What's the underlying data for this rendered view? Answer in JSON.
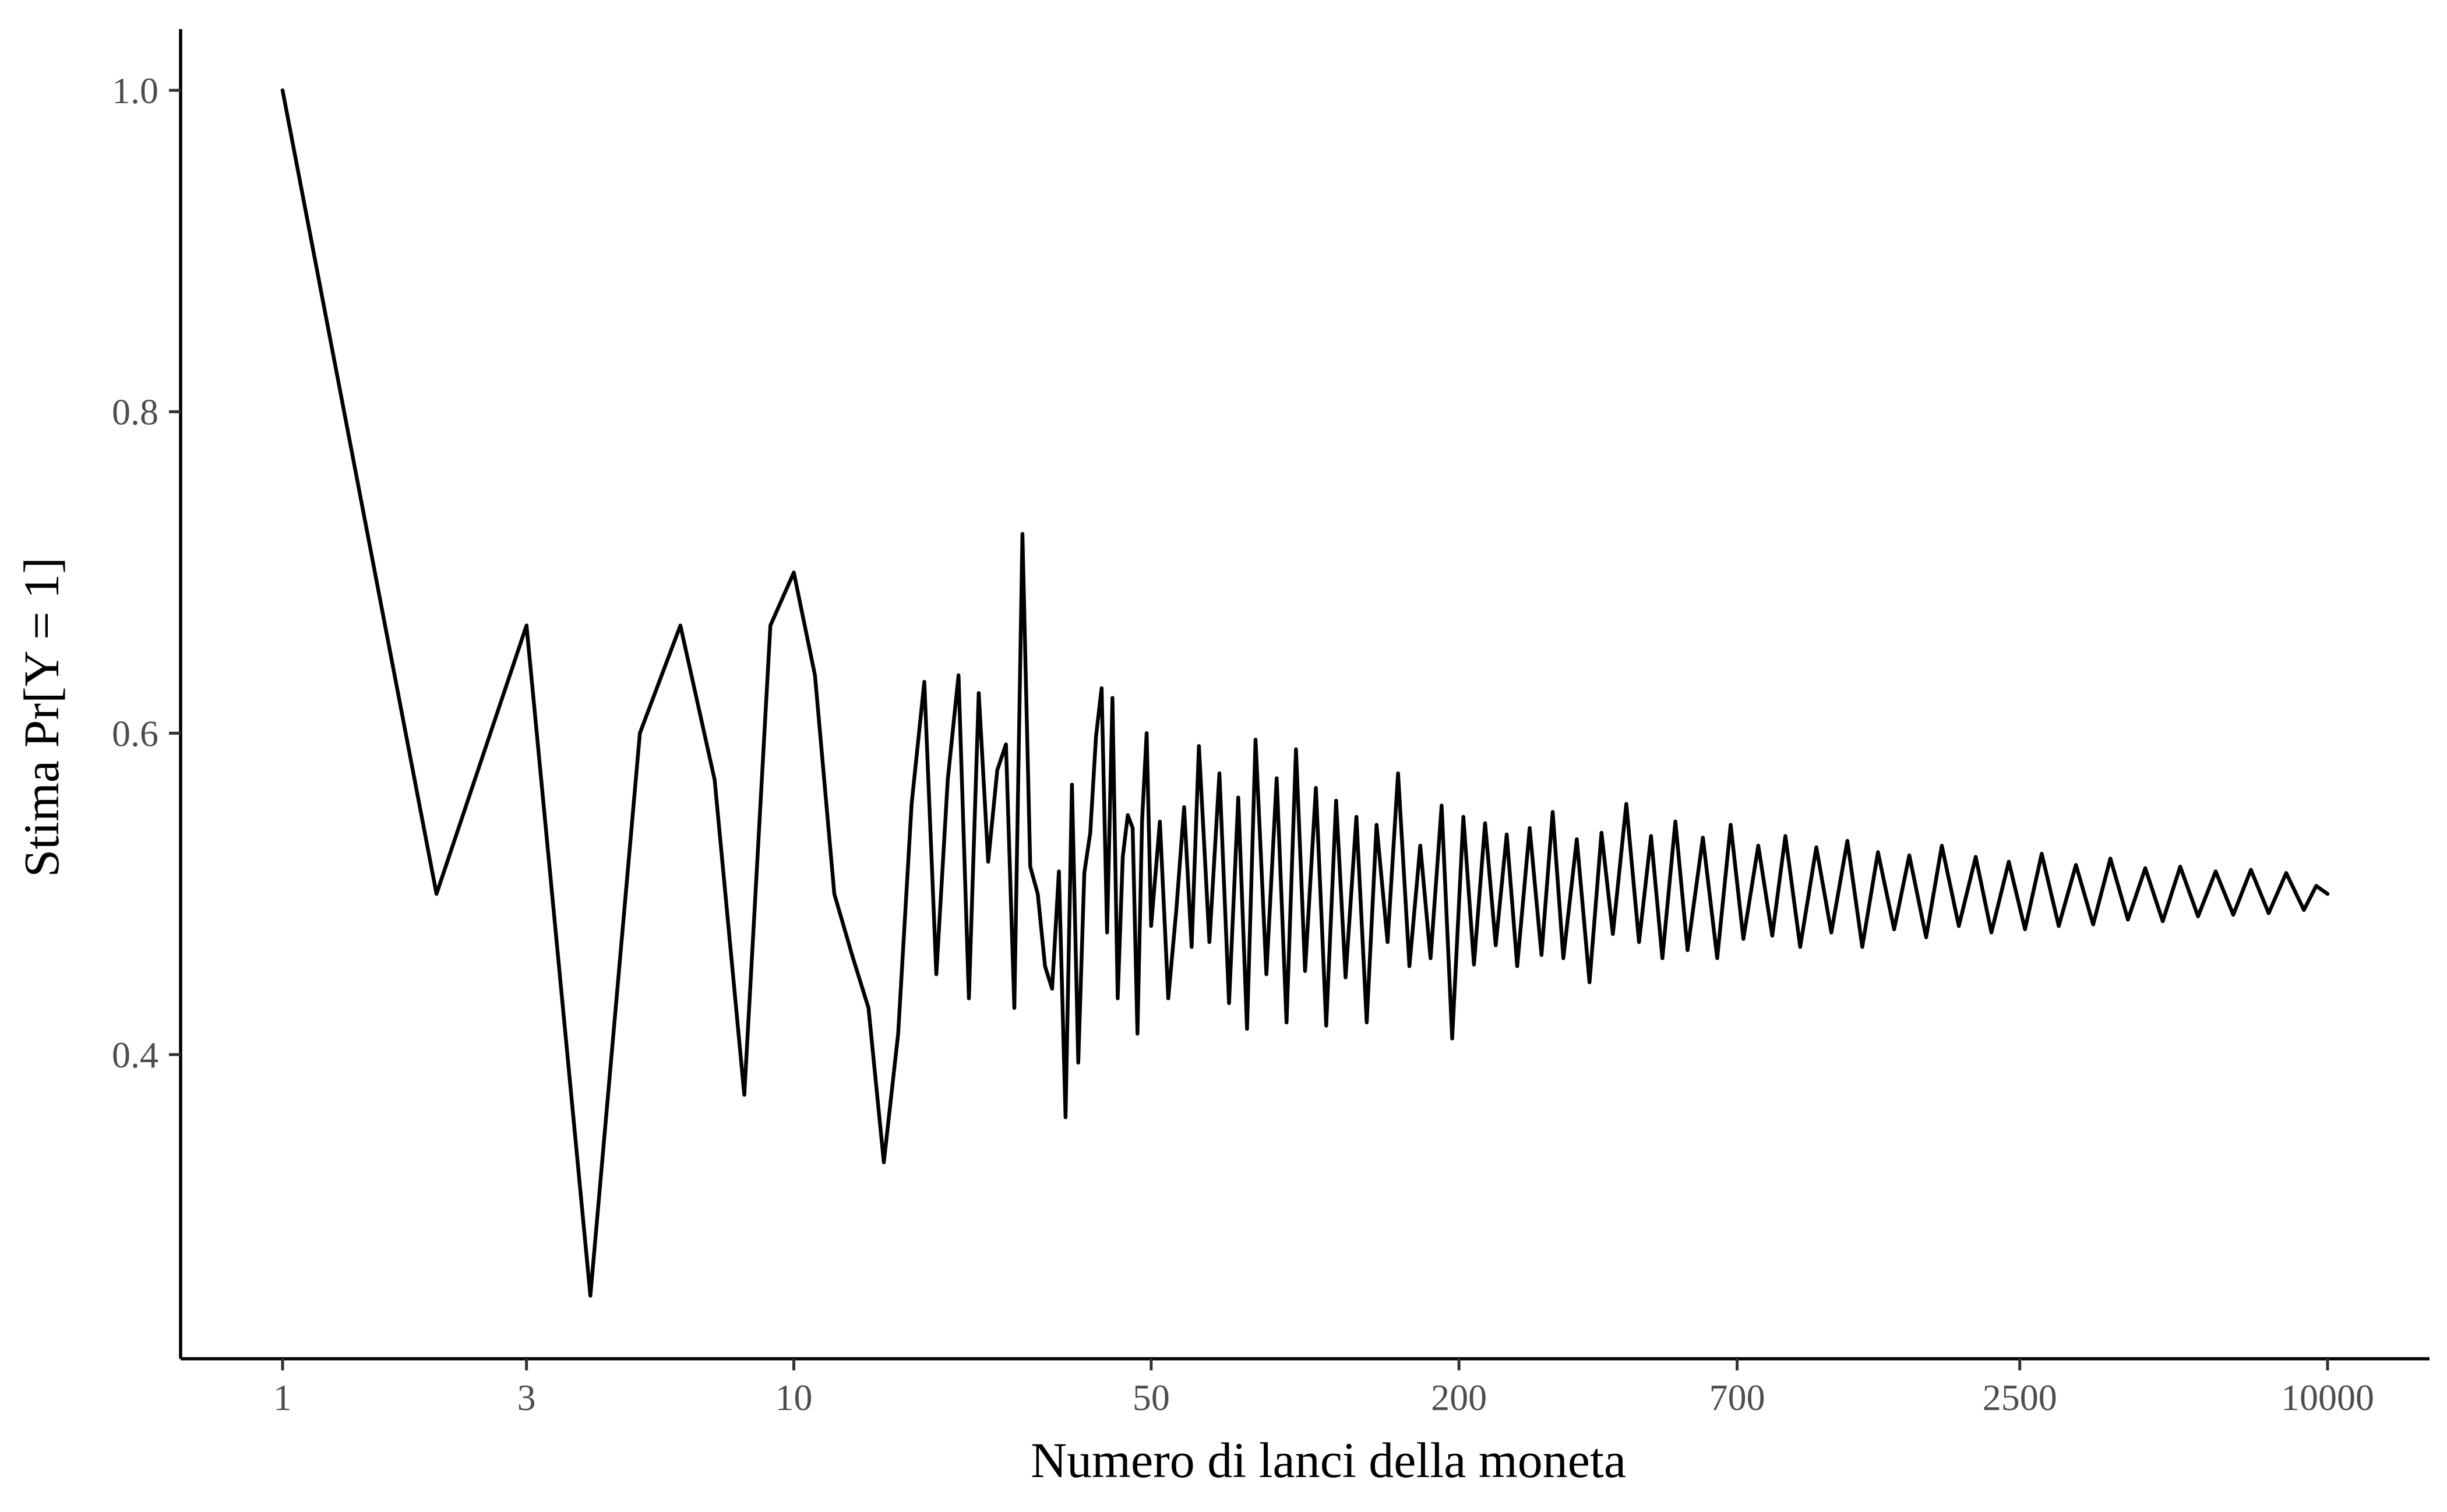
{
  "chart_data": {
    "type": "line",
    "title": "",
    "xlabel": "Numero di lanci della moneta",
    "ylabel": "Stima Pr[Y = 1]",
    "x_scale": "log",
    "xlim": [
      0.6,
      13000
    ],
    "ylim": [
      0.22,
      1.04
    ],
    "grid": false,
    "legend": "none",
    "line_color": "#000000",
    "x_ticks": [
      1,
      3,
      10,
      50,
      200,
      700,
      2500,
      10000
    ],
    "x_tick_labels": [
      "1",
      "3",
      "10",
      "50",
      "200",
      "700",
      "2500",
      "10000"
    ],
    "y_ticks": [
      0.4,
      0.6,
      0.8,
      1.0
    ],
    "y_tick_labels": [
      "0.4",
      "0.6",
      "0.8",
      "1.0"
    ],
    "series": [
      {
        "x": [
          1,
          2,
          3,
          4,
          5,
          6,
          7,
          8,
          9,
          10,
          11,
          12,
          13,
          14,
          15,
          16,
          17,
          18,
          19,
          20,
          21,
          22,
          23,
          24,
          25,
          26,
          27,
          28,
          29,
          30,
          31,
          32,
          33,
          34,
          35,
          36,
          37,
          38,
          39,
          40,
          41,
          42,
          43,
          44,
          45,
          46,
          47,
          48,
          49,
          50,
          52,
          54,
          56,
          58,
          60,
          62,
          65,
          68,
          71,
          74,
          77,
          80,
          84,
          88,
          92,
          96,
          100,
          105,
          110,
          115,
          120,
          126,
          132,
          138,
          145,
          152,
          160,
          168,
          176,
          185,
          194,
          204,
          214,
          225,
          236,
          248,
          260,
          275,
          290,
          305,
          320,
          340,
          360,
          380,
          400,
          425,
          450,
          475,
          500,
          530,
          560,
          600,
          640,
          680,
          720,
          770,
          820,
          870,
          930,
          1000,
          1070,
          1150,
          1230,
          1320,
          1420,
          1520,
          1640,
          1760,
          1900,
          2050,
          2200,
          2380,
          2560,
          2760,
          2980,
          3220,
          3480,
          3760,
          4070,
          4400,
          4760,
          5150,
          5580,
          6040,
          6540,
          7080,
          7670,
          8300,
          8990,
          9500,
          10000
        ],
        "y": [
          1.0,
          0.5,
          0.667,
          0.25,
          0.6,
          0.667,
          0.571,
          0.375,
          0.667,
          0.7,
          0.636,
          0.5,
          0.462,
          0.429,
          0.333,
          0.413,
          0.556,
          0.632,
          0.45,
          0.571,
          0.636,
          0.435,
          0.625,
          0.52,
          0.577,
          0.593,
          0.429,
          0.724,
          0.517,
          0.5,
          0.455,
          0.441,
          0.514,
          0.361,
          0.568,
          0.395,
          0.513,
          0.538,
          0.598,
          0.628,
          0.476,
          0.622,
          0.435,
          0.523,
          0.549,
          0.541,
          0.413,
          0.546,
          0.6,
          0.48,
          0.545,
          0.435,
          0.49,
          0.554,
          0.467,
          0.592,
          0.47,
          0.575,
          0.432,
          0.56,
          0.416,
          0.596,
          0.45,
          0.572,
          0.42,
          0.59,
          0.452,
          0.566,
          0.418,
          0.558,
          0.448,
          0.548,
          0.42,
          0.543,
          0.47,
          0.575,
          0.455,
          0.53,
          0.46,
          0.555,
          0.41,
          0.548,
          0.456,
          0.544,
          0.468,
          0.537,
          0.455,
          0.541,
          0.462,
          0.551,
          0.46,
          0.534,
          0.445,
          0.538,
          0.475,
          0.556,
          0.47,
          0.536,
          0.46,
          0.545,
          0.465,
          0.535,
          0.46,
          0.543,
          0.472,
          0.53,
          0.474,
          0.536,
          0.467,
          0.529,
          0.476,
          0.533,
          0.467,
          0.526,
          0.478,
          0.524,
          0.473,
          0.53,
          0.48,
          0.523,
          0.476,
          0.52,
          0.478,
          0.525,
          0.48,
          0.518,
          0.481,
          0.522,
          0.484,
          0.516,
          0.483,
          0.517,
          0.486,
          0.514,
          0.487,
          0.515,
          0.488,
          0.513,
          0.49,
          0.505,
          0.5
        ]
      }
    ]
  }
}
